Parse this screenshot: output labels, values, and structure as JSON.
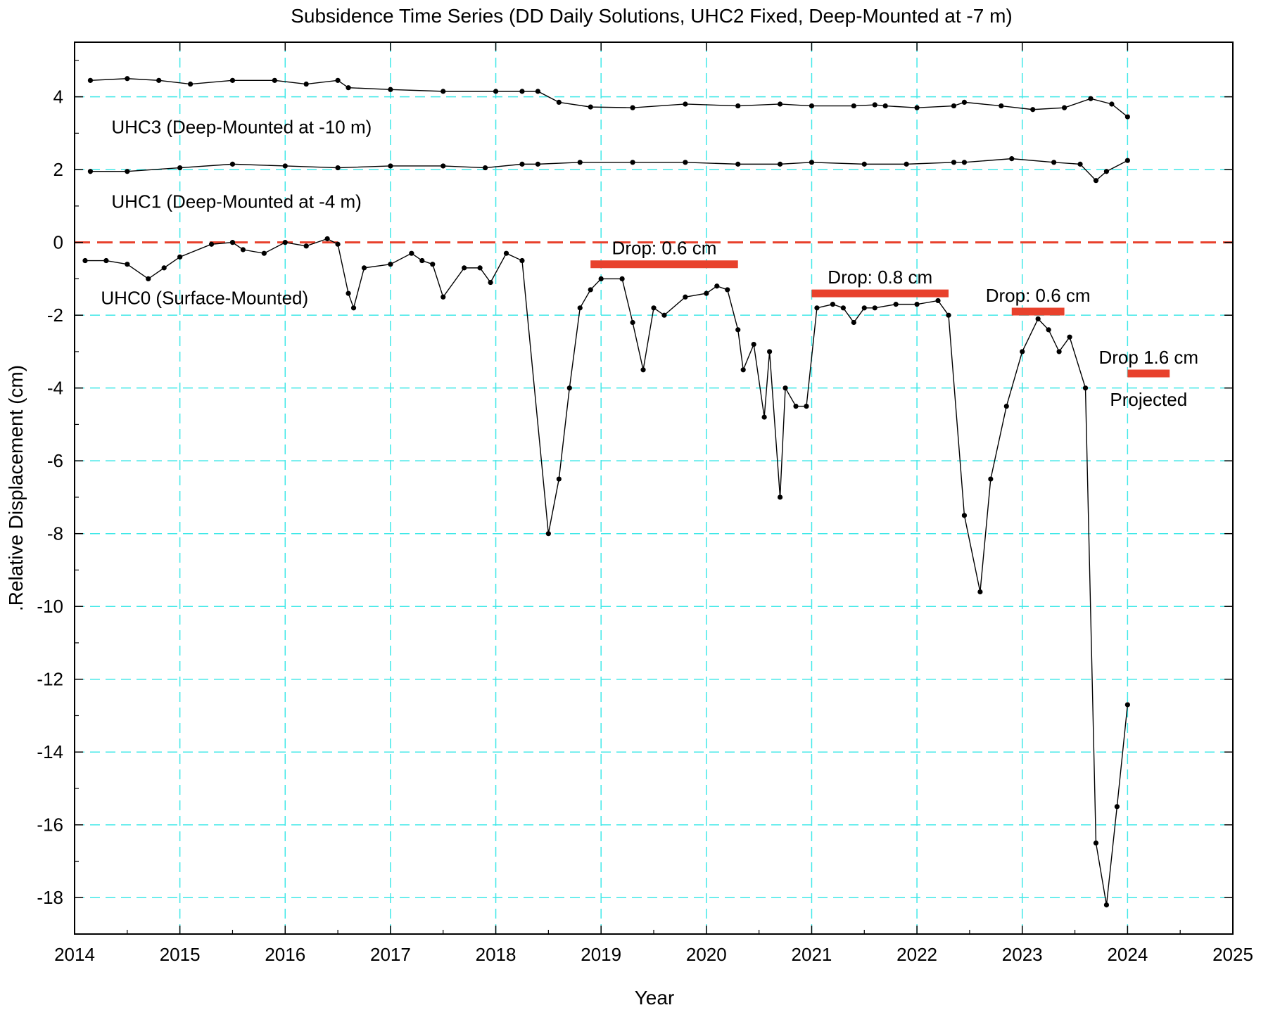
{
  "chart_data": {
    "type": "scatter",
    "title": "Subsidence Time Series (DD Daily Solutions, UHC2 Fixed, Deep-Mounted at -7 m)",
    "xlabel": "Year",
    "ylabel": ".Relative Displacement (cm)",
    "xlim": [
      2014,
      2025
    ],
    "ylim": [
      -19,
      5.5
    ],
    "xticks": [
      "2014",
      "2015",
      "2016",
      "2017",
      "2018",
      "2019",
      "2020",
      "2021",
      "2022",
      "2023",
      "2024",
      "2025"
    ],
    "yticks": [
      "4",
      "2",
      "0",
      "-2",
      "-4",
      "-6",
      "-8",
      "-10",
      "-12",
      "-14",
      "-16",
      "-18"
    ],
    "grid": true,
    "zero_line": {
      "y": 0,
      "color": "#e8412c",
      "style": "dashed"
    },
    "colors": {
      "points": "#000000",
      "grid": "#40e8e8",
      "annotation": "#e8412c"
    },
    "series": [
      {
        "name": "UHC3 (Deep-Mounted at -10 m)",
        "x": [
          2014.15,
          2014.5,
          2014.8,
          2015.1,
          2015.5,
          2015.9,
          2016.2,
          2016.5,
          2016.6,
          2017.0,
          2017.5,
          2018.0,
          2018.25,
          2018.4,
          2018.6,
          2018.9,
          2019.3,
          2019.8,
          2020.3,
          2020.7,
          2021.0,
          2021.4,
          2021.6,
          2021.7,
          2022.0,
          2022.35,
          2022.45,
          2022.8,
          2023.1,
          2023.4,
          2023.65,
          2023.85,
          2024.0
        ],
        "y": [
          4.45,
          4.5,
          4.45,
          4.35,
          4.45,
          4.45,
          4.35,
          4.45,
          4.25,
          4.2,
          4.15,
          4.15,
          4.15,
          4.15,
          3.85,
          3.72,
          3.7,
          3.8,
          3.75,
          3.8,
          3.75,
          3.75,
          3.78,
          3.75,
          3.7,
          3.75,
          3.85,
          3.75,
          3.65,
          3.7,
          3.95,
          3.8,
          3.45
        ]
      },
      {
        "name": "UHC1 (Deep-Mounted at -4 m)",
        "x": [
          2014.15,
          2014.5,
          2015.0,
          2015.5,
          2016.0,
          2016.5,
          2017.0,
          2017.5,
          2017.9,
          2018.25,
          2018.4,
          2018.8,
          2019.3,
          2019.8,
          2020.3,
          2020.7,
          2021.0,
          2021.5,
          2021.9,
          2022.35,
          2022.45,
          2022.9,
          2023.3,
          2023.55,
          2023.7,
          2023.8,
          2024.0
        ],
        "y": [
          1.95,
          1.95,
          2.05,
          2.15,
          2.1,
          2.05,
          2.1,
          2.1,
          2.05,
          2.15,
          2.15,
          2.2,
          2.2,
          2.2,
          2.15,
          2.15,
          2.2,
          2.15,
          2.15,
          2.2,
          2.2,
          2.3,
          2.2,
          2.15,
          1.7,
          1.95,
          2.25
        ]
      },
      {
        "name": "UHC0 (Surface-Mounted)",
        "x": [
          2014.1,
          2014.3,
          2014.5,
          2014.7,
          2014.85,
          2015.0,
          2015.3,
          2015.5,
          2015.6,
          2015.8,
          2016.0,
          2016.2,
          2016.4,
          2016.5,
          2016.6,
          2016.65,
          2016.75,
          2017.0,
          2017.2,
          2017.3,
          2017.4,
          2017.5,
          2017.7,
          2017.85,
          2017.95,
          2018.1,
          2018.25,
          2018.5,
          2018.6,
          2018.7,
          2018.8,
          2018.9,
          2019.0,
          2019.2,
          2019.3,
          2019.4,
          2019.5,
          2019.6,
          2019.8,
          2020.0,
          2020.1,
          2020.2,
          2020.3,
          2020.35,
          2020.45,
          2020.55,
          2020.6,
          2020.7,
          2020.75,
          2020.85,
          2020.95,
          2021.05,
          2021.2,
          2021.3,
          2021.4,
          2021.5,
          2021.6,
          2021.8,
          2022.0,
          2022.2,
          2022.3,
          2022.45,
          2022.6,
          2022.7,
          2022.85,
          2023.0,
          2023.15,
          2023.25,
          2023.35,
          2023.45,
          2023.6,
          2023.7,
          2023.8,
          2023.9,
          2024.0
        ],
        "y": [
          -0.5,
          -0.5,
          -0.6,
          -1.0,
          -0.7,
          -0.4,
          -0.05,
          0.0,
          -0.2,
          -0.3,
          0.0,
          -0.1,
          0.1,
          -0.05,
          -1.4,
          -1.8,
          -0.7,
          -0.6,
          -0.3,
          -0.5,
          -0.6,
          -1.5,
          -0.7,
          -0.7,
          -1.1,
          -0.3,
          -0.5,
          -8.0,
          -6.5,
          -4.0,
          -1.8,
          -1.3,
          -1.0,
          -1.0,
          -2.2,
          -3.5,
          -1.8,
          -2.0,
          -1.5,
          -1.4,
          -1.2,
          -1.3,
          -2.4,
          -3.5,
          -2.8,
          -4.8,
          -3.0,
          -7.0,
          -4.0,
          -4.5,
          -4.5,
          -1.8,
          -1.7,
          -1.8,
          -2.2,
          -1.8,
          -1.8,
          -1.7,
          -1.7,
          -1.6,
          -2.0,
          -7.5,
          -9.6,
          -6.5,
          -4.5,
          -3.0,
          -2.1,
          -2.4,
          -3.0,
          -2.6,
          -4.0,
          -16.5,
          -18.2,
          -15.5,
          -12.7
        ]
      }
    ],
    "annotations": [
      {
        "text": "UHC3 (Deep-Mounted at -10 m)",
        "x": 2014.35,
        "y": 3.0
      },
      {
        "text": "UHC1 (Deep-Mounted at -4 m)",
        "x": 2014.35,
        "y": 0.95
      },
      {
        "text": "UHC0 (Surface-Mounted)",
        "x": 2014.25,
        "y": -1.7
      },
      {
        "text": "Drop: 0.6 cm",
        "x1": 2018.9,
        "x2": 2020.3,
        "y": -0.6
      },
      {
        "text": "Drop: 0.8 cm",
        "x1": 2021.0,
        "x2": 2022.3,
        "y": -1.4
      },
      {
        "text": "Drop: 0.6 cm",
        "x1": 2022.9,
        "x2": 2023.4,
        "y": -1.9
      },
      {
        "text": "Drop 1.6 cm",
        "x1": 2024.0,
        "x2": 2024.4,
        "y": -3.6,
        "subtext": "Projected"
      }
    ]
  }
}
